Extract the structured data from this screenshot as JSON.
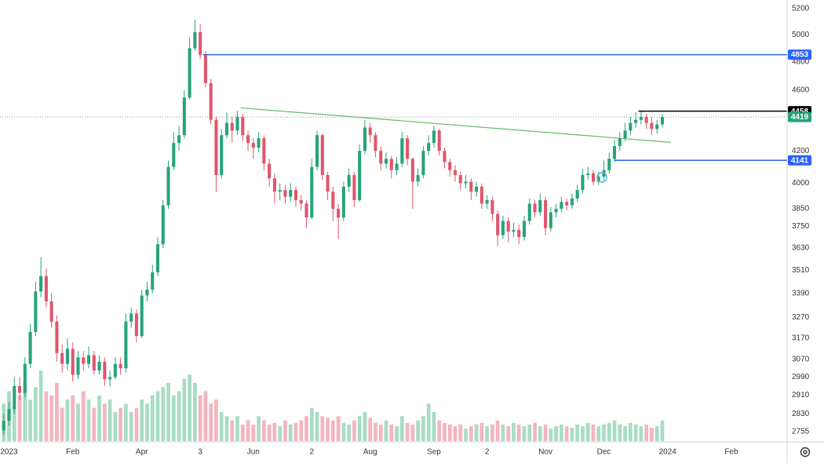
{
  "chart_data": {
    "type": "candlestick",
    "log_scale": true,
    "grid": false,
    "up_color": "#26a37a",
    "down_color": "#e0566b",
    "volume_up_color": "#a9dcc5",
    "volume_down_color": "#f4b5bd",
    "last_price_color": "#26a37a",
    "xlim": [
      -0.7,
      147.5
    ],
    "ylim": [
      2716,
      5268
    ],
    "yticks": [
      2755,
      2830,
      2910,
      2990,
      3070,
      3170,
      3270,
      3390,
      3510,
      3630,
      3750,
      3850,
      4000,
      4200,
      4600,
      4800,
      5000,
      5200
    ],
    "xticks": [
      {
        "value": 1,
        "label": "2023"
      },
      {
        "value": 13,
        "label": "Feb"
      },
      {
        "value": 26,
        "label": "Apr"
      },
      {
        "value": 37,
        "label": "3"
      },
      {
        "value": 47,
        "label": "Jun"
      },
      {
        "value": 58,
        "label": "2"
      },
      {
        "value": 69,
        "label": "Aug"
      },
      {
        "value": 81,
        "label": "Sep"
      },
      {
        "value": 91,
        "label": "2"
      },
      {
        "value": 102,
        "label": "Nov"
      },
      {
        "value": 113,
        "label": "Dec"
      },
      {
        "value": 125,
        "label": "2024"
      },
      {
        "value": 137,
        "label": "Feb"
      }
    ],
    "open": [
      2760,
      2800,
      2850,
      2950,
      2920,
      3050,
      3200,
      3400,
      3480,
      3350,
      3250,
      3100,
      3050,
      3120,
      3000,
      3080,
      3050,
      3090,
      3020,
      3060,
      2980,
      2990,
      3050,
      3030,
      3250,
      3290,
      3180,
      3380,
      3410,
      3500,
      3650,
      3870,
      4100,
      4250,
      4300,
      4550,
      4900,
      5020,
      4850,
      4650,
      4400,
      4050,
      4300,
      4380,
      4330,
      4420,
      4300,
      4250,
      4220,
      4280,
      4120,
      4030,
      3950,
      3960,
      3920,
      3960,
      3900,
      3880,
      3800,
      4100,
      4300,
      4050,
      3950,
      3850,
      3800,
      3980,
      4050,
      3900,
      4200,
      4350,
      4300,
      4200,
      4120,
      4150,
      4080,
      4120,
      4280,
      4150,
      4010,
      4050,
      4200,
      4250,
      4330,
      4200,
      4130,
      4080,
      4050,
      4000,
      4010,
      3950,
      3980,
      3880,
      3900,
      3820,
      3700,
      3780,
      3720,
      3730,
      3690,
      3780,
      3880,
      3830,
      3900,
      3740,
      3830,
      3850,
      3890,
      3870,
      3910,
      3960,
      4050,
      4060,
      4010,
      4040,
      4080,
      4150,
      4230,
      4280,
      4330,
      4380,
      4400,
      4420,
      4380,
      4340,
      4370
    ],
    "high": [
      2830,
      2880,
      2990,
      2990,
      3080,
      3240,
      3450,
      3580,
      3520,
      3390,
      3280,
      3140,
      3170,
      3150,
      3110,
      3110,
      3130,
      3110,
      3090,
      3080,
      3020,
      3080,
      3080,
      3290,
      3320,
      3310,
      3410,
      3450,
      3540,
      3690,
      3900,
      4140,
      4320,
      4360,
      4600,
      4980,
      5115,
      5080,
      4880,
      4680,
      4420,
      4340,
      4450,
      4420,
      4460,
      4440,
      4330,
      4280,
      4320,
      4300,
      4150,
      4060,
      4000,
      3990,
      4000,
      3980,
      3930,
      3900,
      4150,
      4330,
      4310,
      4070,
      3980,
      3880,
      4010,
      4090,
      4070,
      4240,
      4400,
      4380,
      4320,
      4230,
      4190,
      4170,
      4160,
      4320,
      4300,
      4160,
      4090,
      4230,
      4300,
      4360,
      4340,
      4220,
      4150,
      4110,
      4070,
      4050,
      4030,
      4010,
      4000,
      3930,
      3920,
      3840,
      3810,
      3800,
      3770,
      3760,
      3810,
      3910,
      3900,
      3940,
      3920,
      3860,
      3880,
      3920,
      3910,
      3940,
      3990,
      4090,
      4100,
      4080,
      4070,
      4140,
      4190,
      4270,
      4320,
      4380,
      4420,
      4450,
      4458,
      4440,
      4420,
      4400,
      4440
    ],
    "low": [
      2740,
      2780,
      2830,
      2890,
      2900,
      3030,
      3180,
      3370,
      3320,
      3220,
      3060,
      3010,
      3020,
      2970,
      2980,
      3020,
      3030,
      3000,
      3000,
      2950,
      2950,
      2980,
      3000,
      3010,
      3220,
      3150,
      3170,
      3350,
      3390,
      3480,
      3630,
      3850,
      4080,
      4200,
      4280,
      4540,
      4880,
      4820,
      4620,
      4370,
      3950,
      4030,
      4280,
      4250,
      4300,
      4260,
      4200,
      4150,
      4190,
      4080,
      3980,
      3880,
      3900,
      3880,
      3890,
      3860,
      3840,
      3740,
      3790,
      4080,
      4020,
      3900,
      3780,
      3680,
      3780,
      3950,
      3860,
      3890,
      4180,
      4250,
      4160,
      4080,
      4090,
      4030,
      4050,
      4100,
      4110,
      3850,
      3980,
      4030,
      4170,
      4220,
      4170,
      4090,
      4040,
      4010,
      3960,
      3970,
      3900,
      3920,
      3850,
      3850,
      3780,
      3640,
      3680,
      3660,
      3690,
      3650,
      3670,
      3760,
      3800,
      3810,
      3700,
      3720,
      3800,
      3830,
      3840,
      3850,
      3890,
      3940,
      4020,
      3990,
      3990,
      4020,
      4060,
      4130,
      4200,
      4260,
      4300,
      4350,
      4370,
      4340,
      4300,
      4310,
      4350
    ],
    "close": [
      2800,
      2850,
      2950,
      2920,
      3050,
      3200,
      3400,
      3480,
      3350,
      3250,
      3100,
      3050,
      3120,
      3000,
      3080,
      3050,
      3090,
      3020,
      3060,
      2980,
      2990,
      3050,
      3030,
      3250,
      3290,
      3180,
      3380,
      3410,
      3500,
      3650,
      3870,
      4100,
      4250,
      4300,
      4550,
      4900,
      5020,
      4850,
      4650,
      4400,
      4050,
      4300,
      4380,
      4330,
      4420,
      4300,
      4250,
      4220,
      4280,
      4120,
      4030,
      3950,
      3960,
      3920,
      3960,
      3900,
      3880,
      3800,
      4100,
      4300,
      4050,
      3950,
      3850,
      3800,
      3980,
      4050,
      3900,
      4200,
      4350,
      4300,
      4200,
      4120,
      4150,
      4080,
      4120,
      4280,
      4150,
      4010,
      4050,
      4200,
      4250,
      4330,
      4200,
      4130,
      4080,
      4050,
      4000,
      4010,
      3950,
      3980,
      3880,
      3900,
      3820,
      3700,
      3780,
      3720,
      3730,
      3690,
      3780,
      3880,
      3830,
      3900,
      3740,
      3830,
      3850,
      3890,
      3870,
      3910,
      3960,
      4050,
      4060,
      4010,
      4040,
      4080,
      4150,
      4230,
      4280,
      4330,
      4380,
      4400,
      4420,
      4380,
      4340,
      4370,
      4419
    ],
    "volume": [
      45,
      60,
      40,
      55,
      70,
      50,
      65,
      85,
      60,
      55,
      70,
      40,
      50,
      55,
      45,
      60,
      50,
      40,
      55,
      45,
      50,
      35,
      40,
      45,
      35,
      40,
      50,
      45,
      55,
      60,
      65,
      70,
      55,
      60,
      75,
      80,
      70,
      55,
      60,
      45,
      50,
      35,
      30,
      25,
      30,
      20,
      25,
      20,
      30,
      25,
      20,
      22,
      18,
      25,
      20,
      22,
      25,
      30,
      40,
      35,
      30,
      28,
      25,
      30,
      22,
      20,
      25,
      30,
      35,
      28,
      22,
      20,
      25,
      20,
      18,
      30,
      22,
      20,
      25,
      30,
      45,
      35,
      25,
      22,
      20,
      18,
      20,
      15,
      18,
      20,
      22,
      18,
      20,
      25,
      20,
      18,
      22,
      20,
      18,
      20,
      22,
      18,
      20,
      15,
      18,
      20,
      18,
      16,
      20,
      18,
      22,
      20,
      18,
      20,
      22,
      25,
      20,
      18,
      22,
      20,
      18,
      20,
      16,
      18,
      25
    ],
    "levels": [
      {
        "value": 4853,
        "color": "#2962ff",
        "start": 37.5
      },
      {
        "value": 4458,
        "color": "#000000",
        "start": 119.5
      },
      {
        "value": 4141,
        "color": "#2962ff",
        "start": 115
      }
    ],
    "trendline": {
      "x": [
        44.6,
        125.6
      ],
      "y": [
        4480,
        4254
      ],
      "color": "#66bb6a"
    }
  }
}
